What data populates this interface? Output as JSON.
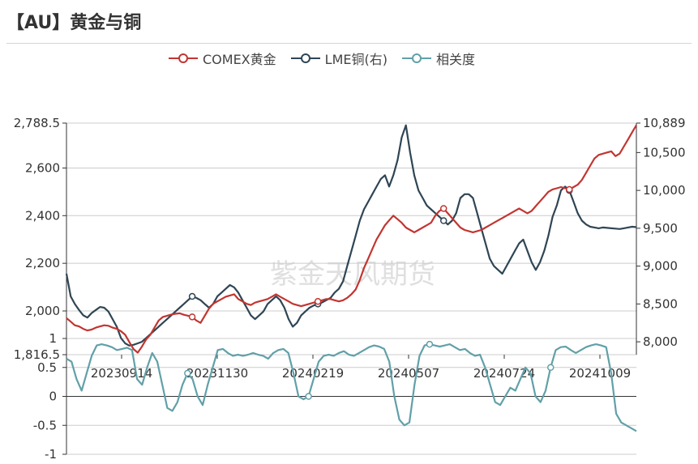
{
  "title": "【AU】黄金与铜",
  "watermark": "紫金天风期货",
  "legend": [
    {
      "name": "COMEX黄金",
      "color": "#c23531"
    },
    {
      "name": "LME铜(右)",
      "color": "#2f4554"
    },
    {
      "name": "相关度",
      "color": "#61a0a8"
    }
  ],
  "chart_data": [
    {
      "type": "line",
      "panel": "top",
      "y_left": {
        "min": 1816.5,
        "max": 2788.5,
        "ticks": [
          1816.5,
          2000,
          2200,
          2400,
          2600,
          2788.5
        ],
        "tick_labels": [
          "1,816.5",
          "2,000",
          "2,200",
          "2,400",
          "2,600",
          "2,788.5"
        ]
      },
      "y_right": {
        "min": 7830,
        "max": 10889,
        "ticks": [
          8000,
          8500,
          9000,
          9500,
          10000,
          10500,
          10889
        ],
        "tick_labels": [
          "8,000",
          "8,500",
          "9,000",
          "9,500",
          "10,000",
          "10,500",
          "10,889"
        ]
      },
      "series": [
        {
          "name": "COMEX黄金",
          "axis": "left",
          "color": "#c23531",
          "values": [
            1970,
            1955,
            1940,
            1935,
            1925,
            1918,
            1922,
            1930,
            1935,
            1940,
            1938,
            1930,
            1925,
            1915,
            1900,
            1870,
            1840,
            1825,
            1850,
            1880,
            1900,
            1930,
            1960,
            1975,
            1980,
            1985,
            1988,
            1990,
            1984,
            1980,
            1975,
            1960,
            1950,
            1980,
            2010,
            2030,
            2040,
            2050,
            2060,
            2065,
            2070,
            2050,
            2040,
            2030,
            2025,
            2035,
            2040,
            2045,
            2050,
            2060,
            2070,
            2060,
            2050,
            2040,
            2030,
            2025,
            2020,
            2025,
            2030,
            2035,
            2040,
            2045,
            2050,
            2050,
            2045,
            2040,
            2045,
            2055,
            2070,
            2090,
            2130,
            2180,
            2220,
            2260,
            2300,
            2330,
            2360,
            2380,
            2400,
            2385,
            2370,
            2350,
            2340,
            2330,
            2340,
            2350,
            2360,
            2370,
            2400,
            2420,
            2430,
            2410,
            2390,
            2370,
            2350,
            2340,
            2335,
            2330,
            2335,
            2340,
            2350,
            2360,
            2370,
            2380,
            2390,
            2400,
            2410,
            2420,
            2430,
            2420,
            2410,
            2420,
            2440,
            2460,
            2480,
            2500,
            2510,
            2515,
            2520,
            2515,
            2510,
            2520,
            2530,
            2550,
            2580,
            2610,
            2640,
            2655,
            2660,
            2665,
            2670,
            2650,
            2660,
            2690,
            2720,
            2750,
            2780
          ]
        },
        {
          "name": "LME铜(右)",
          "axis": "right",
          "color": "#2f4554",
          "values": [
            8900,
            8600,
            8500,
            8420,
            8350,
            8320,
            8380,
            8420,
            8460,
            8450,
            8400,
            8300,
            8200,
            8050,
            7980,
            7950,
            7960,
            7980,
            8000,
            8050,
            8100,
            8150,
            8200,
            8250,
            8300,
            8350,
            8400,
            8450,
            8500,
            8550,
            8600,
            8580,
            8550,
            8500,
            8450,
            8500,
            8600,
            8650,
            8700,
            8750,
            8720,
            8650,
            8550,
            8450,
            8350,
            8300,
            8350,
            8400,
            8500,
            8550,
            8600,
            8550,
            8450,
            8300,
            8200,
            8250,
            8350,
            8400,
            8450,
            8480,
            8500,
            8520,
            8550,
            8580,
            8650,
            8700,
            8800,
            9000,
            9200,
            9400,
            9600,
            9750,
            9850,
            9950,
            10050,
            10150,
            10200,
            10050,
            10200,
            10400,
            10700,
            10860,
            10500,
            10200,
            10000,
            9900,
            9800,
            9750,
            9700,
            9650,
            9600,
            9550,
            9600,
            9700,
            9900,
            9950,
            9950,
            9900,
            9700,
            9500,
            9300,
            9100,
            9000,
            8950,
            8900,
            9000,
            9100,
            9200,
            9300,
            9350,
            9200,
            9050,
            8950,
            9050,
            9200,
            9400,
            9650,
            9800,
            10000,
            10050,
            10000,
            9850,
            9700,
            9600,
            9550,
            9520,
            9510,
            9500,
            9510,
            9505,
            9500,
            9495,
            9490,
            9500,
            9510,
            9520,
            9515
          ]
        }
      ],
      "x_tick_labels": [
        "20230914",
        "20231130",
        "20240219",
        "20240507",
        "20240724",
        "20241009"
      ]
    },
    {
      "type": "line",
      "panel": "bottom",
      "y": {
        "min": -1,
        "max": 1,
        "ticks": [
          -1,
          -0.5,
          0,
          0.5,
          1
        ],
        "tick_labels": [
          "-1",
          "-0.5",
          "0",
          "0.5",
          "1"
        ]
      },
      "series": [
        {
          "name": "相关度",
          "color": "#61a0a8",
          "values": [
            0.65,
            0.6,
            0.3,
            0.1,
            0.4,
            0.7,
            0.88,
            0.9,
            0.88,
            0.85,
            0.8,
            0.82,
            0.84,
            0.8,
            0.3,
            0.2,
            0.5,
            0.75,
            0.6,
            0.2,
            -0.2,
            -0.25,
            -0.1,
            0.2,
            0.4,
            0.3,
            0.0,
            -0.15,
            0.2,
            0.5,
            0.8,
            0.82,
            0.75,
            0.7,
            0.72,
            0.7,
            0.72,
            0.75,
            0.72,
            0.7,
            0.65,
            0.75,
            0.8,
            0.82,
            0.75,
            0.4,
            0.0,
            -0.05,
            0.0,
            0.3,
            0.6,
            0.7,
            0.72,
            0.7,
            0.75,
            0.78,
            0.72,
            0.7,
            0.75,
            0.8,
            0.85,
            0.88,
            0.86,
            0.82,
            0.6,
            0.0,
            -0.4,
            -0.5,
            -0.45,
            0.2,
            0.7,
            0.88,
            0.9,
            0.88,
            0.86,
            0.88,
            0.9,
            0.85,
            0.8,
            0.82,
            0.75,
            0.7,
            0.72,
            0.5,
            0.2,
            -0.1,
            -0.15,
            0.0,
            0.15,
            0.1,
            0.3,
            0.5,
            0.4,
            0.0,
            -0.1,
            0.1,
            0.5,
            0.8,
            0.85,
            0.86,
            0.8,
            0.75,
            0.8,
            0.85,
            0.88,
            0.9,
            0.88,
            0.85,
            0.4,
            -0.3,
            -0.45,
            -0.5,
            -0.55,
            -0.6
          ]
        }
      ]
    }
  ]
}
